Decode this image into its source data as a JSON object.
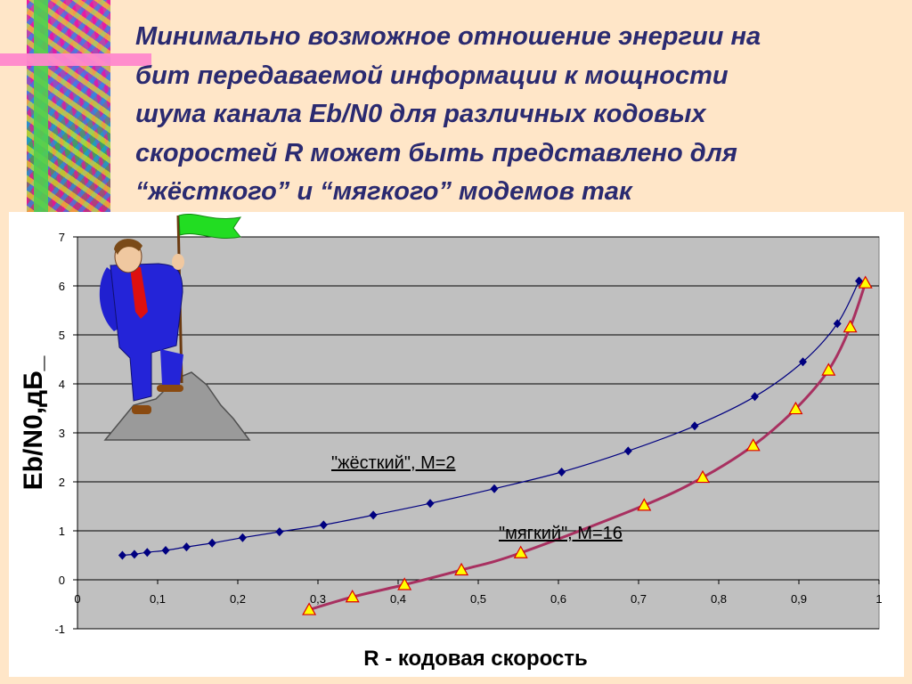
{
  "slide": {
    "title": "Минимально возможное отношение энергии на\nбит передаваемой информации к мощности\nшума канала Eb/N0 для различных кодовых\nскоростей R может быть представлено для\n“жёсткого” и “мягкого” модемов так"
  },
  "chart_data": {
    "type": "line",
    "title": "",
    "xlabel": "R - кодовая скорость",
    "ylabel": "Eb/N0,дБ_",
    "xlim": [
      0,
      1
    ],
    "ylim": [
      -1,
      7
    ],
    "x_ticks": [
      "0",
      "0,1",
      "0,2",
      "0,3",
      "0,4",
      "0,5",
      "0,6",
      "0,7",
      "0,8",
      "0,9",
      "1"
    ],
    "y_ticks": [
      "-1",
      "0",
      "1",
      "2",
      "3",
      "4",
      "5",
      "6",
      "7"
    ],
    "grid": true,
    "series": [
      {
        "name": "\"жёсткий\", M=2",
        "color": "#000080",
        "marker": "diamond",
        "x": [
          0.056,
          0.071,
          0.087,
          0.11,
          0.136,
          0.168,
          0.206,
          0.252,
          0.307,
          0.369,
          0.44,
          0.52,
          0.604,
          0.687,
          0.77,
          0.845,
          0.905,
          0.948,
          0.975
        ],
        "y": [
          0.5,
          0.52,
          0.56,
          0.6,
          0.67,
          0.75,
          0.86,
          0.98,
          1.12,
          1.32,
          1.56,
          1.86,
          2.2,
          2.63,
          3.14,
          3.74,
          4.45,
          5.23,
          6.1
        ]
      },
      {
        "name": "\"мягкий\", M=16",
        "color": "#a83060",
        "marker": "triangle",
        "x": [
          0.289,
          0.343,
          0.408,
          0.479,
          0.553,
          0.707,
          0.78,
          0.843,
          0.896,
          0.937,
          0.964,
          0.983
        ],
        "y": [
          -0.61,
          -0.35,
          -0.1,
          0.2,
          0.55,
          1.52,
          2.09,
          2.74,
          3.49,
          4.28,
          5.16,
          6.06
        ]
      }
    ]
  }
}
